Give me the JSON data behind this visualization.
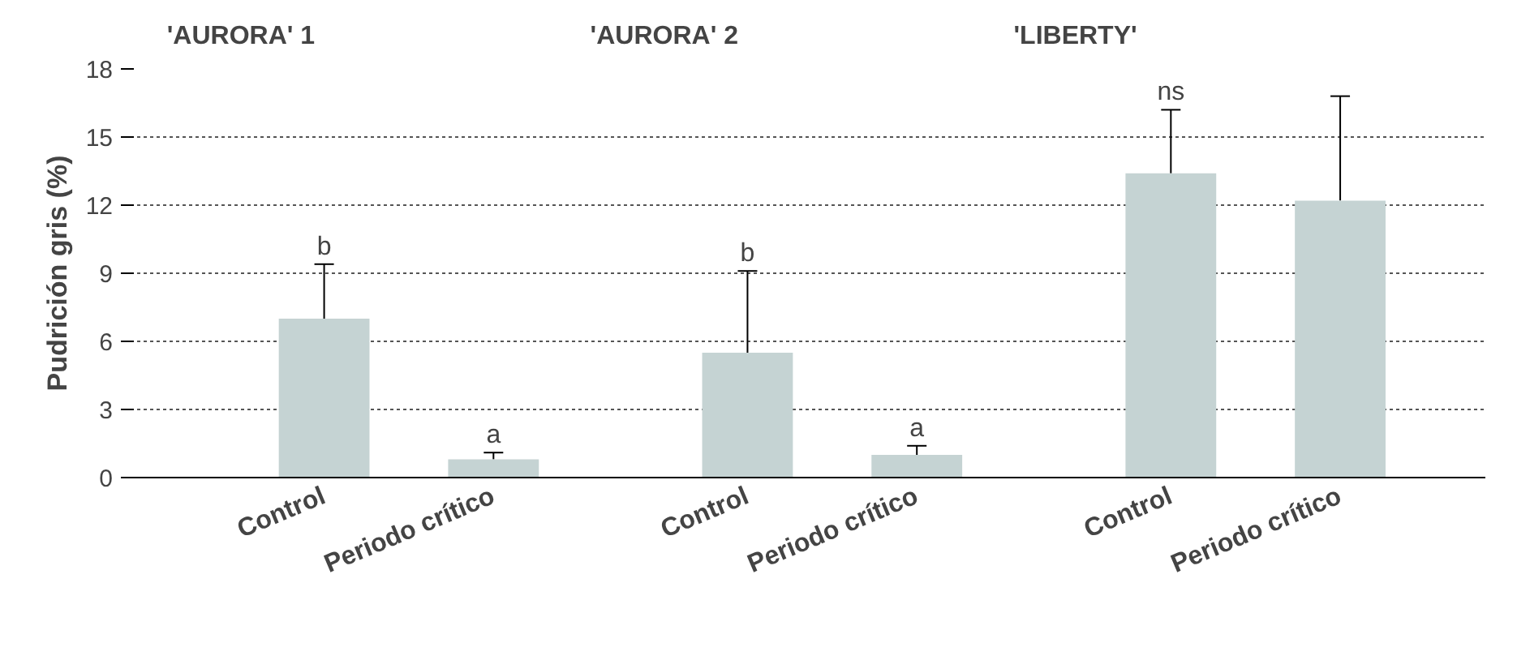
{
  "chart_data": {
    "type": "bar",
    "ylabel": "Pudrición gris (%)",
    "categories": [
      "Control",
      "Periodo crítico",
      "Control",
      "Periodo crítico",
      "Control",
      "Periodo crítico"
    ],
    "values": [
      7.0,
      0.8,
      5.5,
      1.0,
      13.4,
      12.2
    ],
    "errors": [
      [
        7.0,
        9.4
      ],
      [
        0.8,
        1.1
      ],
      [
        5.5,
        9.1
      ],
      [
        1.0,
        1.4
      ],
      [
        13.4,
        16.2
      ],
      [
        12.2,
        16.8
      ]
    ],
    "color": "#c5d3d3",
    "ylim": [
      0,
      18
    ],
    "yticks": [
      0,
      3,
      6,
      9,
      12,
      15,
      18
    ],
    "grid": "y",
    "annotations": [
      "'AURORA' 1",
      "'AURORA' 2",
      "'LIBERTY'",
      {
        "text": "b",
        "y": 9.4
      },
      {
        "text": "a",
        "y": 1.1
      },
      {
        "text": "b",
        "y": 9.1
      },
      {
        "text": "a",
        "y": 1.4
      },
      {
        "text": "ns",
        "y": 16.2
      }
    ]
  }
}
